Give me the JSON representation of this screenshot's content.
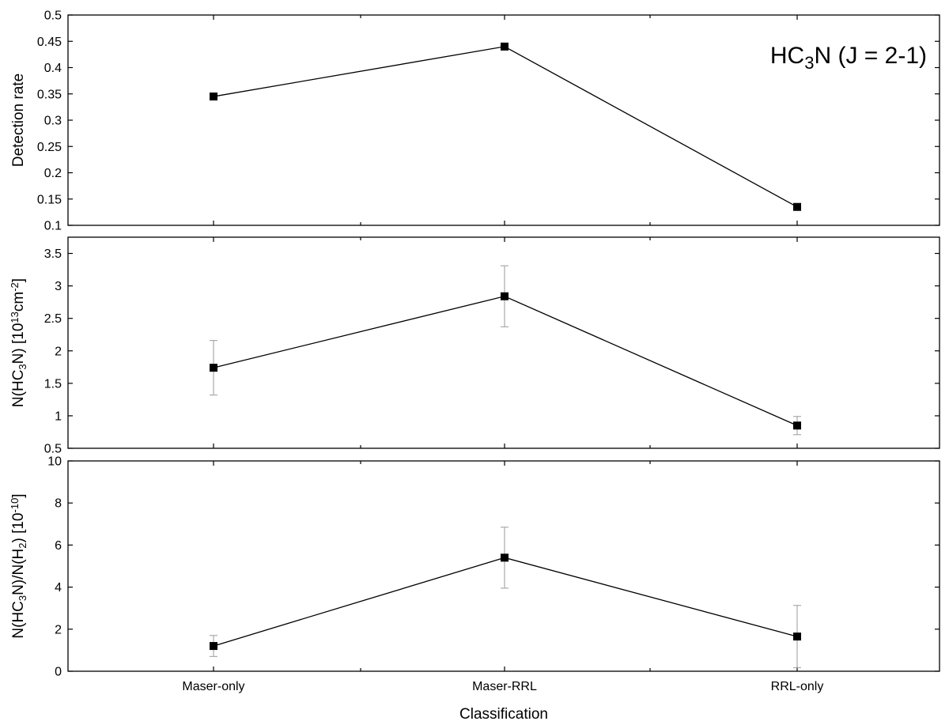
{
  "chart_data": [
    {
      "type": "line",
      "panel": "top",
      "annotation": {
        "main": "HC",
        "sub": "3",
        "rest": "N (J = 2-1)"
      },
      "ylabel": {
        "parts": [
          {
            "t": "Detection rate"
          }
        ]
      },
      "ylim": [
        0.1,
        0.5
      ],
      "yticks": [
        "0.1",
        "0.15",
        "0.2",
        "0.25",
        "0.3",
        "0.35",
        "0.4",
        "0.45",
        "0.5"
      ],
      "categories": [
        "Maser-only",
        "Maser-RRL",
        "RRL-only"
      ],
      "values": [
        0.345,
        0.44,
        0.135
      ],
      "errors": null,
      "grid": false
    },
    {
      "type": "line",
      "panel": "middle",
      "ylabel": {
        "parts": [
          {
            "t": "N(HC"
          },
          {
            "t": "3",
            "s": "sub"
          },
          {
            "t": "N) [10"
          },
          {
            "t": "13",
            "s": "sup"
          },
          {
            "t": "cm"
          },
          {
            "t": "-2",
            "s": "sup"
          },
          {
            "t": "]"
          }
        ]
      },
      "ylim": [
        0.5,
        3.75
      ],
      "yticks": [
        "0.5",
        "1",
        "1.5",
        "2",
        "2.5",
        "3",
        "3.5"
      ],
      "categories": [
        "Maser-only",
        "Maser-RRL",
        "RRL-only"
      ],
      "values": [
        1.74,
        2.84,
        0.85
      ],
      "errors": [
        0.42,
        0.47,
        0.14
      ],
      "grid": false
    },
    {
      "type": "line",
      "panel": "bottom",
      "ylabel": {
        "parts": [
          {
            "t": "N(HC"
          },
          {
            "t": "3",
            "s": "sub"
          },
          {
            "t": "N)/N(H"
          },
          {
            "t": "2",
            "s": "sub"
          },
          {
            "t": ") [10"
          },
          {
            "t": "-10",
            "s": "sup"
          },
          {
            "t": "]"
          }
        ]
      },
      "ylim": [
        0,
        10
      ],
      "yticks": [
        "0",
        "2",
        "4",
        "6",
        "8",
        "10"
      ],
      "categories": [
        "Maser-only",
        "Maser-RRL",
        "RRL-only"
      ],
      "values": [
        1.2,
        5.4,
        1.65
      ],
      "errors": [
        0.5,
        1.45,
        1.48
      ],
      "grid": false
    }
  ],
  "xlabel": "Classification",
  "colors": {
    "line": "#000000",
    "marker": "#000000",
    "error_bar": "#aaaaaa",
    "background": "#ffffff"
  }
}
